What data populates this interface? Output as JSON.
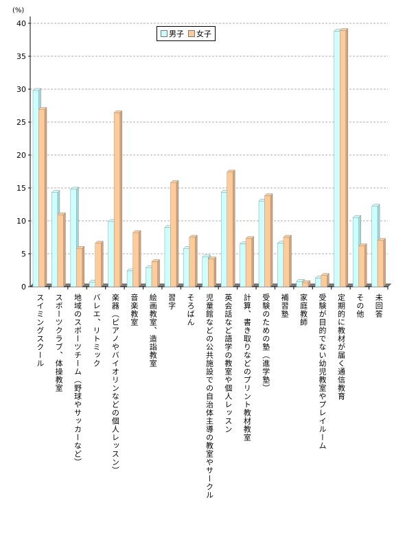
{
  "chart_data": {
    "type": "bar",
    "unit_label": "(%)",
    "ylim": [
      0,
      40
    ],
    "yticks": [
      0,
      5,
      10,
      15,
      20,
      25,
      30,
      35,
      40
    ],
    "grid": true,
    "legend_position": "top-center",
    "categories": [
      "スイミングスクール",
      "スポーツクラブ、体操教室",
      "地域のスポーツチーム（野球やサッカーなど）",
      "バレエ、リトミック",
      "楽器（ピアノやバイオリンなどの個人レッスン）",
      "音楽教室",
      "絵画教室、造詣教室",
      "習字",
      "そろばん",
      "児童館などの公共施設での自治体主導の教室やサークル",
      "英会話など語学の教室や個人レッスン",
      "計算、書き取りなどのプリント教材教室",
      "受験のための塾（進学塾）",
      "補習塾",
      "家庭教師",
      "受験が目的でない幼児教室やプレイルーム",
      "定期的に教材が届く通信教育",
      "その他",
      "未回答"
    ],
    "series": [
      {
        "name": "男子",
        "color": "#ccffff",
        "values": [
          29.8,
          14.3,
          14.8,
          0.7,
          9.9,
          2.4,
          2.9,
          9.0,
          5.8,
          4.5,
          14.3,
          6.5,
          13.0,
          6.6,
          0.8,
          1.3,
          38.8,
          10.5,
          12.2
        ]
      },
      {
        "name": "女子",
        "color": "#ffcc99",
        "values": [
          26.9,
          10.9,
          5.8,
          6.6,
          26.4,
          8.2,
          3.8,
          15.8,
          7.5,
          4.2,
          17.4,
          7.3,
          13.8,
          7.5,
          0.6,
          1.7,
          38.9,
          6.2,
          7.0
        ]
      }
    ]
  }
}
